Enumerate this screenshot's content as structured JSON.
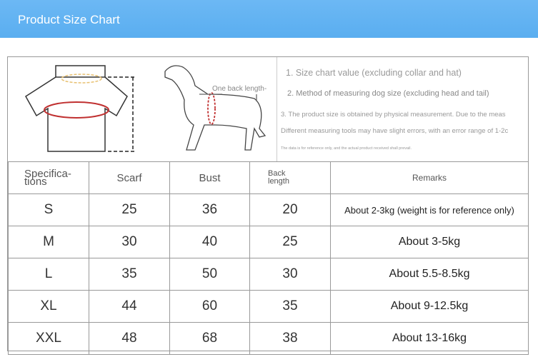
{
  "header": {
    "title": "Product Size Chart"
  },
  "illustration": {
    "dog_label": "One back length-"
  },
  "notes": [
    "1. Size chart value (excluding collar and hat)",
    "2. Method of measuring dog size (excluding head and tail)",
    "3. The product size is obtained by physical measurement. Due to the meas",
    "Different measuring tools may have slight errors, with an error range of 1-2c",
    "The data is for reference only, and the actual product received shall prevail."
  ],
  "table": {
    "columns": [
      "Specifica-\ntions",
      "Scarf",
      "Bust",
      "Back\nlength",
      "Remarks"
    ],
    "rows": [
      [
        "S",
        "25",
        "36",
        "20",
        "About 2-3kg (weight is for reference only)"
      ],
      [
        "M",
        "30",
        "40",
        "25",
        "About 3-5kg"
      ],
      [
        "L",
        "35",
        "50",
        "30",
        "About 5.5-8.5kg"
      ],
      [
        "XL",
        "44",
        "60",
        "35",
        "About 9-12.5kg"
      ],
      [
        "XXL",
        "48",
        "68",
        "38",
        "About 13-16kg"
      ]
    ]
  }
}
